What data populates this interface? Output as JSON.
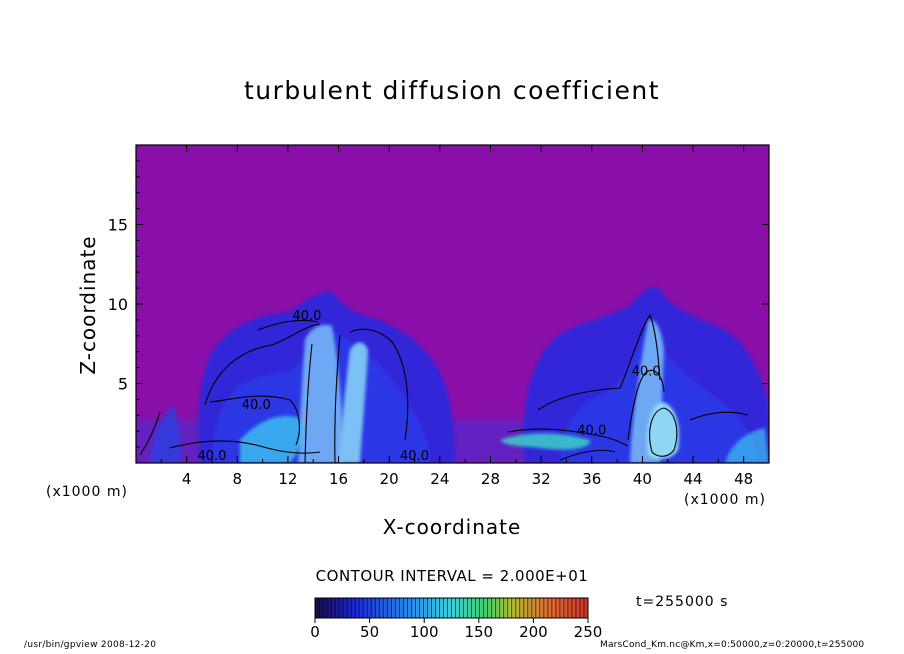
{
  "chart_data": {
    "type": "heatmap",
    "title": "turbulent diffusion coefficient",
    "xlabel": "X-coordinate",
    "ylabel": "Z-coordinate",
    "x_unit_left": "(x1000 m)",
    "x_unit_right": "(x1000 m)",
    "xlim": [
      0,
      50
    ],
    "ylim": [
      0,
      20
    ],
    "x_ticks": [
      4,
      8,
      12,
      16,
      20,
      24,
      28,
      32,
      36,
      40,
      44,
      48
    ],
    "y_ticks": [
      5,
      10,
      15
    ],
    "contour_interval_text": "CONTOUR INTERVAL = 2.000E+01",
    "time_text": "t=255000 s",
    "colorbar": {
      "ticks": [
        0,
        50,
        100,
        150,
        200,
        250
      ],
      "range": [
        0,
        250
      ]
    },
    "contour_labels": [
      {
        "text": "40.0",
        "x": 13.5,
        "z": 9.0
      },
      {
        "text": "40.0",
        "x": 9.5,
        "z": 3.4
      },
      {
        "text": "40.0",
        "x": 6.0,
        "z": 0.2
      },
      {
        "text": "40.0",
        "x": 22.0,
        "z": 0.2
      },
      {
        "text": "40.0",
        "x": 40.3,
        "z": 5.5
      },
      {
        "text": "40.0",
        "x": 36.0,
        "z": 1.8
      }
    ],
    "colors": {
      "background_field": "#8a0fa8",
      "deep_blue": "#2a1ad8",
      "mid_blue": "#1f4ff0",
      "light_blue": "#3cc4f0"
    }
  },
  "footer": {
    "left": "/usr/bin/gpview   2008-12-20",
    "right": "MarsCond_Km.nc@Km,x=0:50000,z=0:20000,t=255000"
  }
}
